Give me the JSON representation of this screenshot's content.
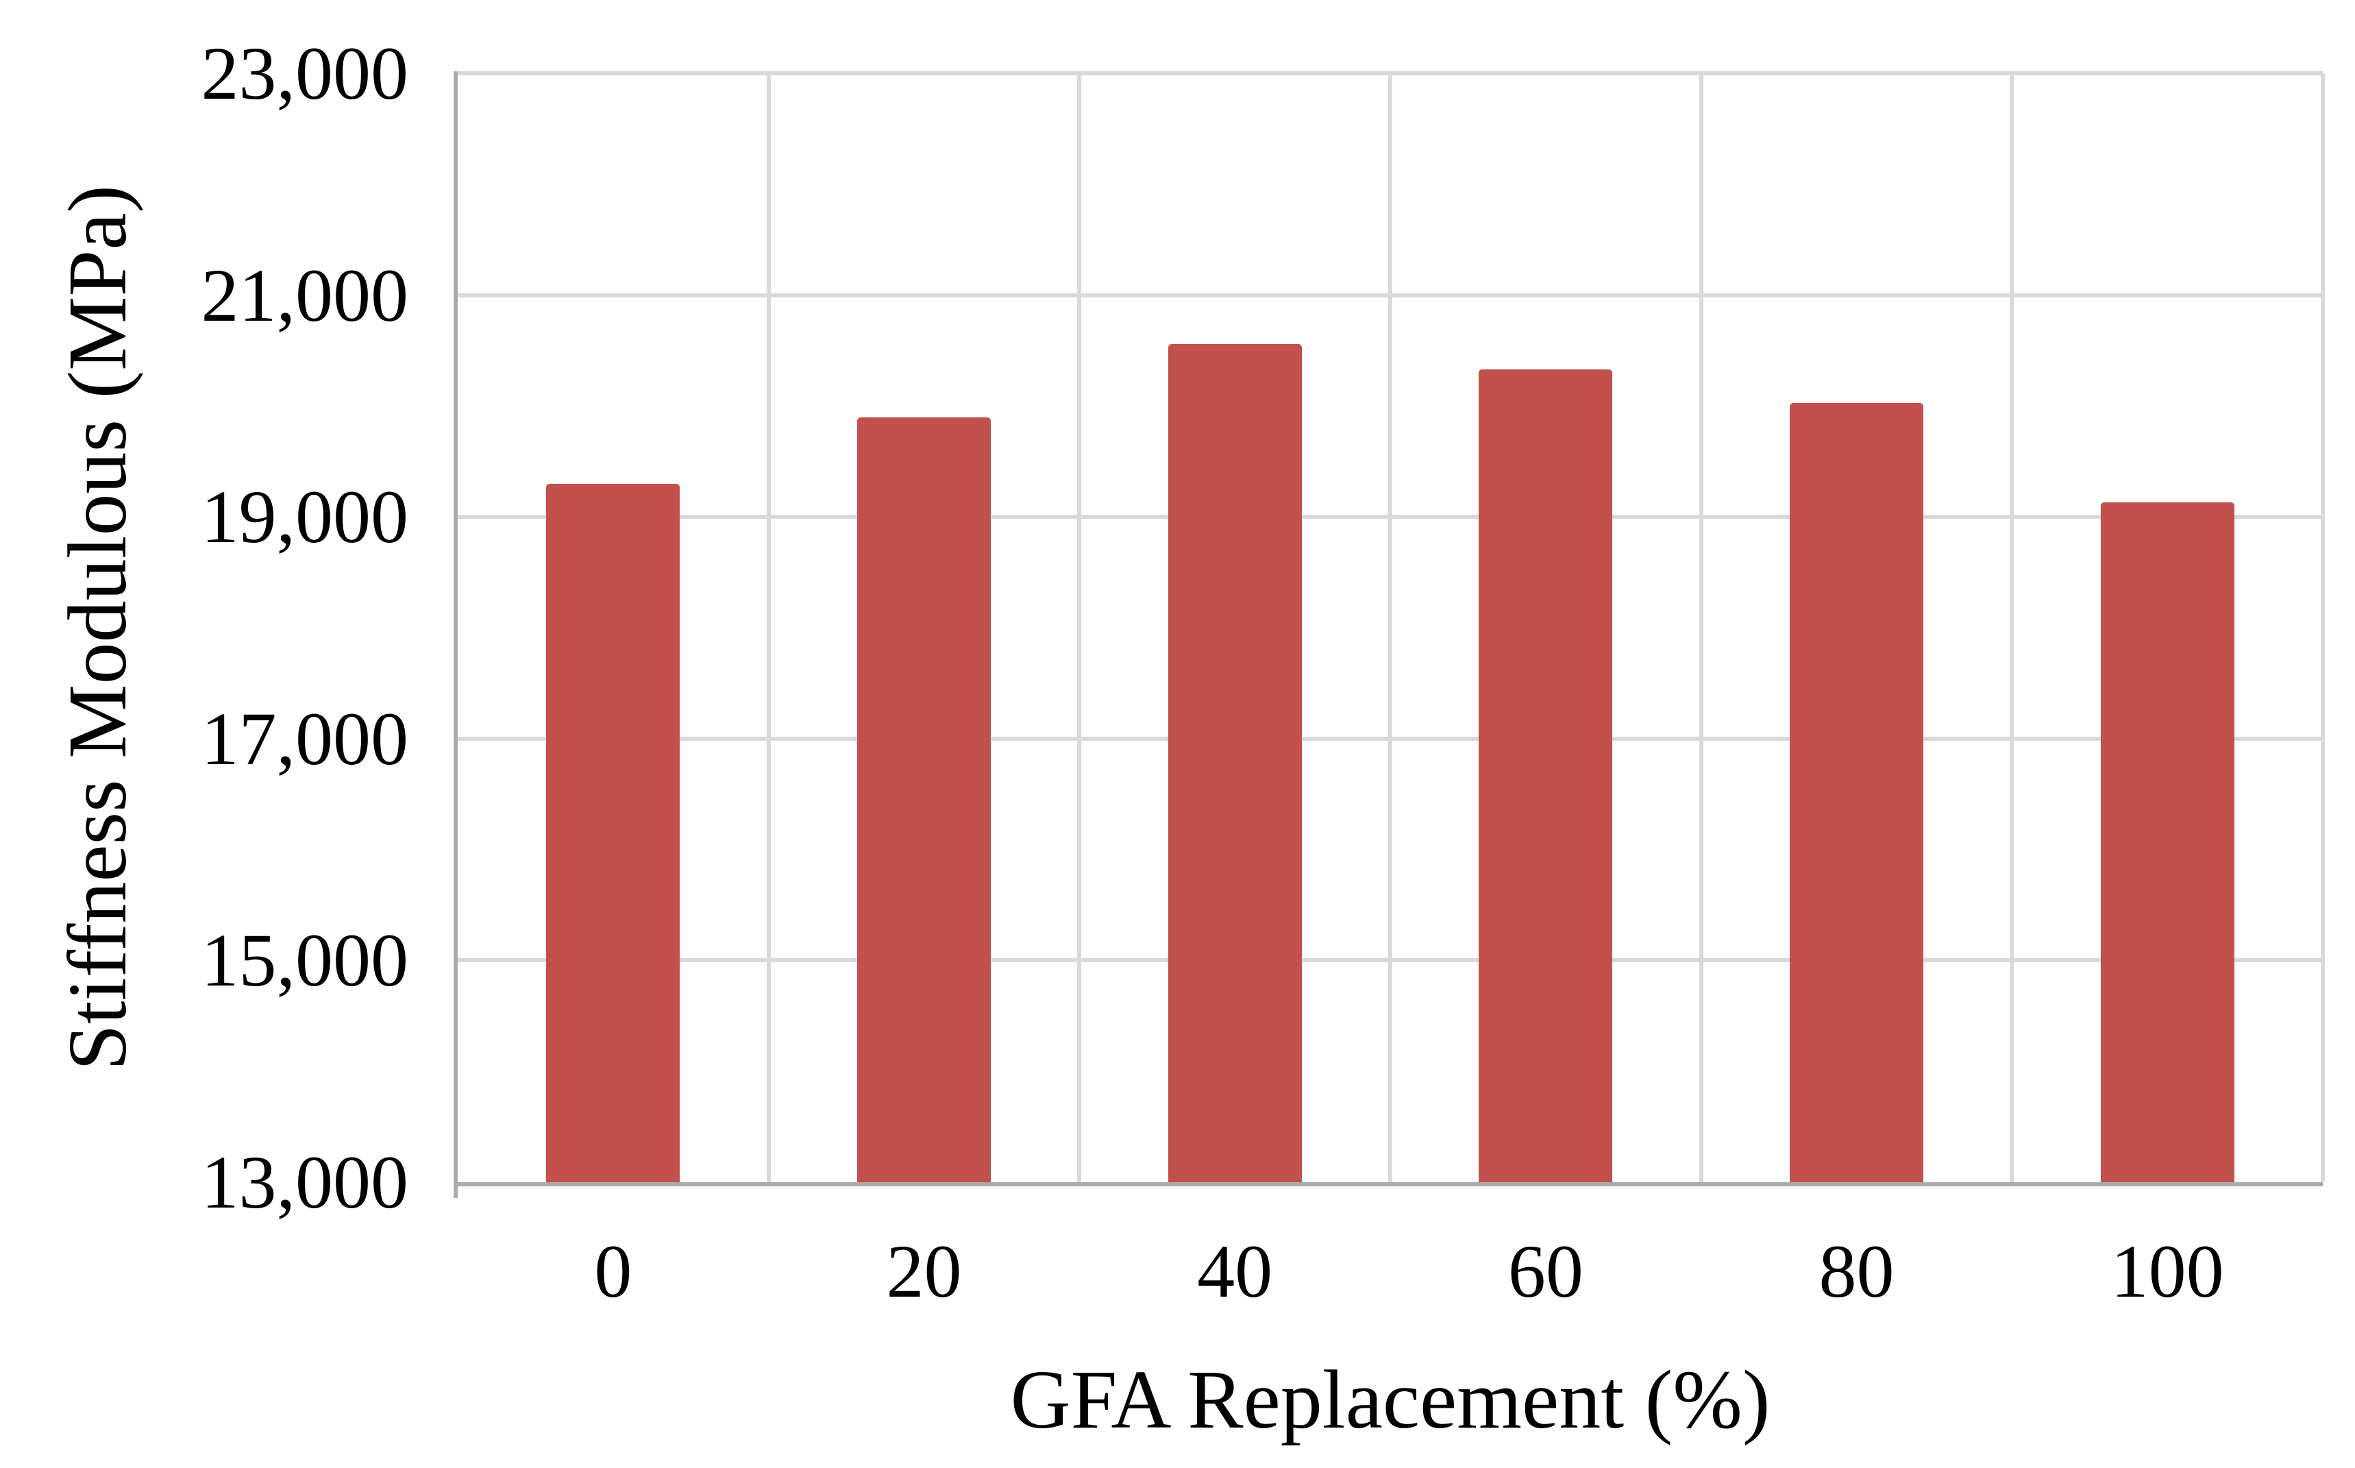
{
  "chart_data": {
    "type": "bar",
    "title": "",
    "categories": [
      "0",
      "20",
      "40",
      "60",
      "80",
      "100"
    ],
    "values": [
      19300,
      19900,
      20560,
      20330,
      20030,
      19130
    ],
    "xlabel": "GFA Replacement (%)",
    "ylabel": "Stiffness Modulous (MPa)",
    "ylim": [
      13000,
      23000
    ],
    "ytick_step": 2000,
    "ytick_labels": [
      "13,000",
      "15,000",
      "17,000",
      "19,000",
      "21,000",
      "23,000"
    ],
    "legend_position": "none",
    "grid": true,
    "bar_gap_ratio": 0.43,
    "colors": {
      "bar_fill": "#C2514E",
      "gridline": "#D9D9D9",
      "axis_line": "#ABABAB",
      "text": "#000000",
      "background": "#FFFFFF"
    }
  }
}
